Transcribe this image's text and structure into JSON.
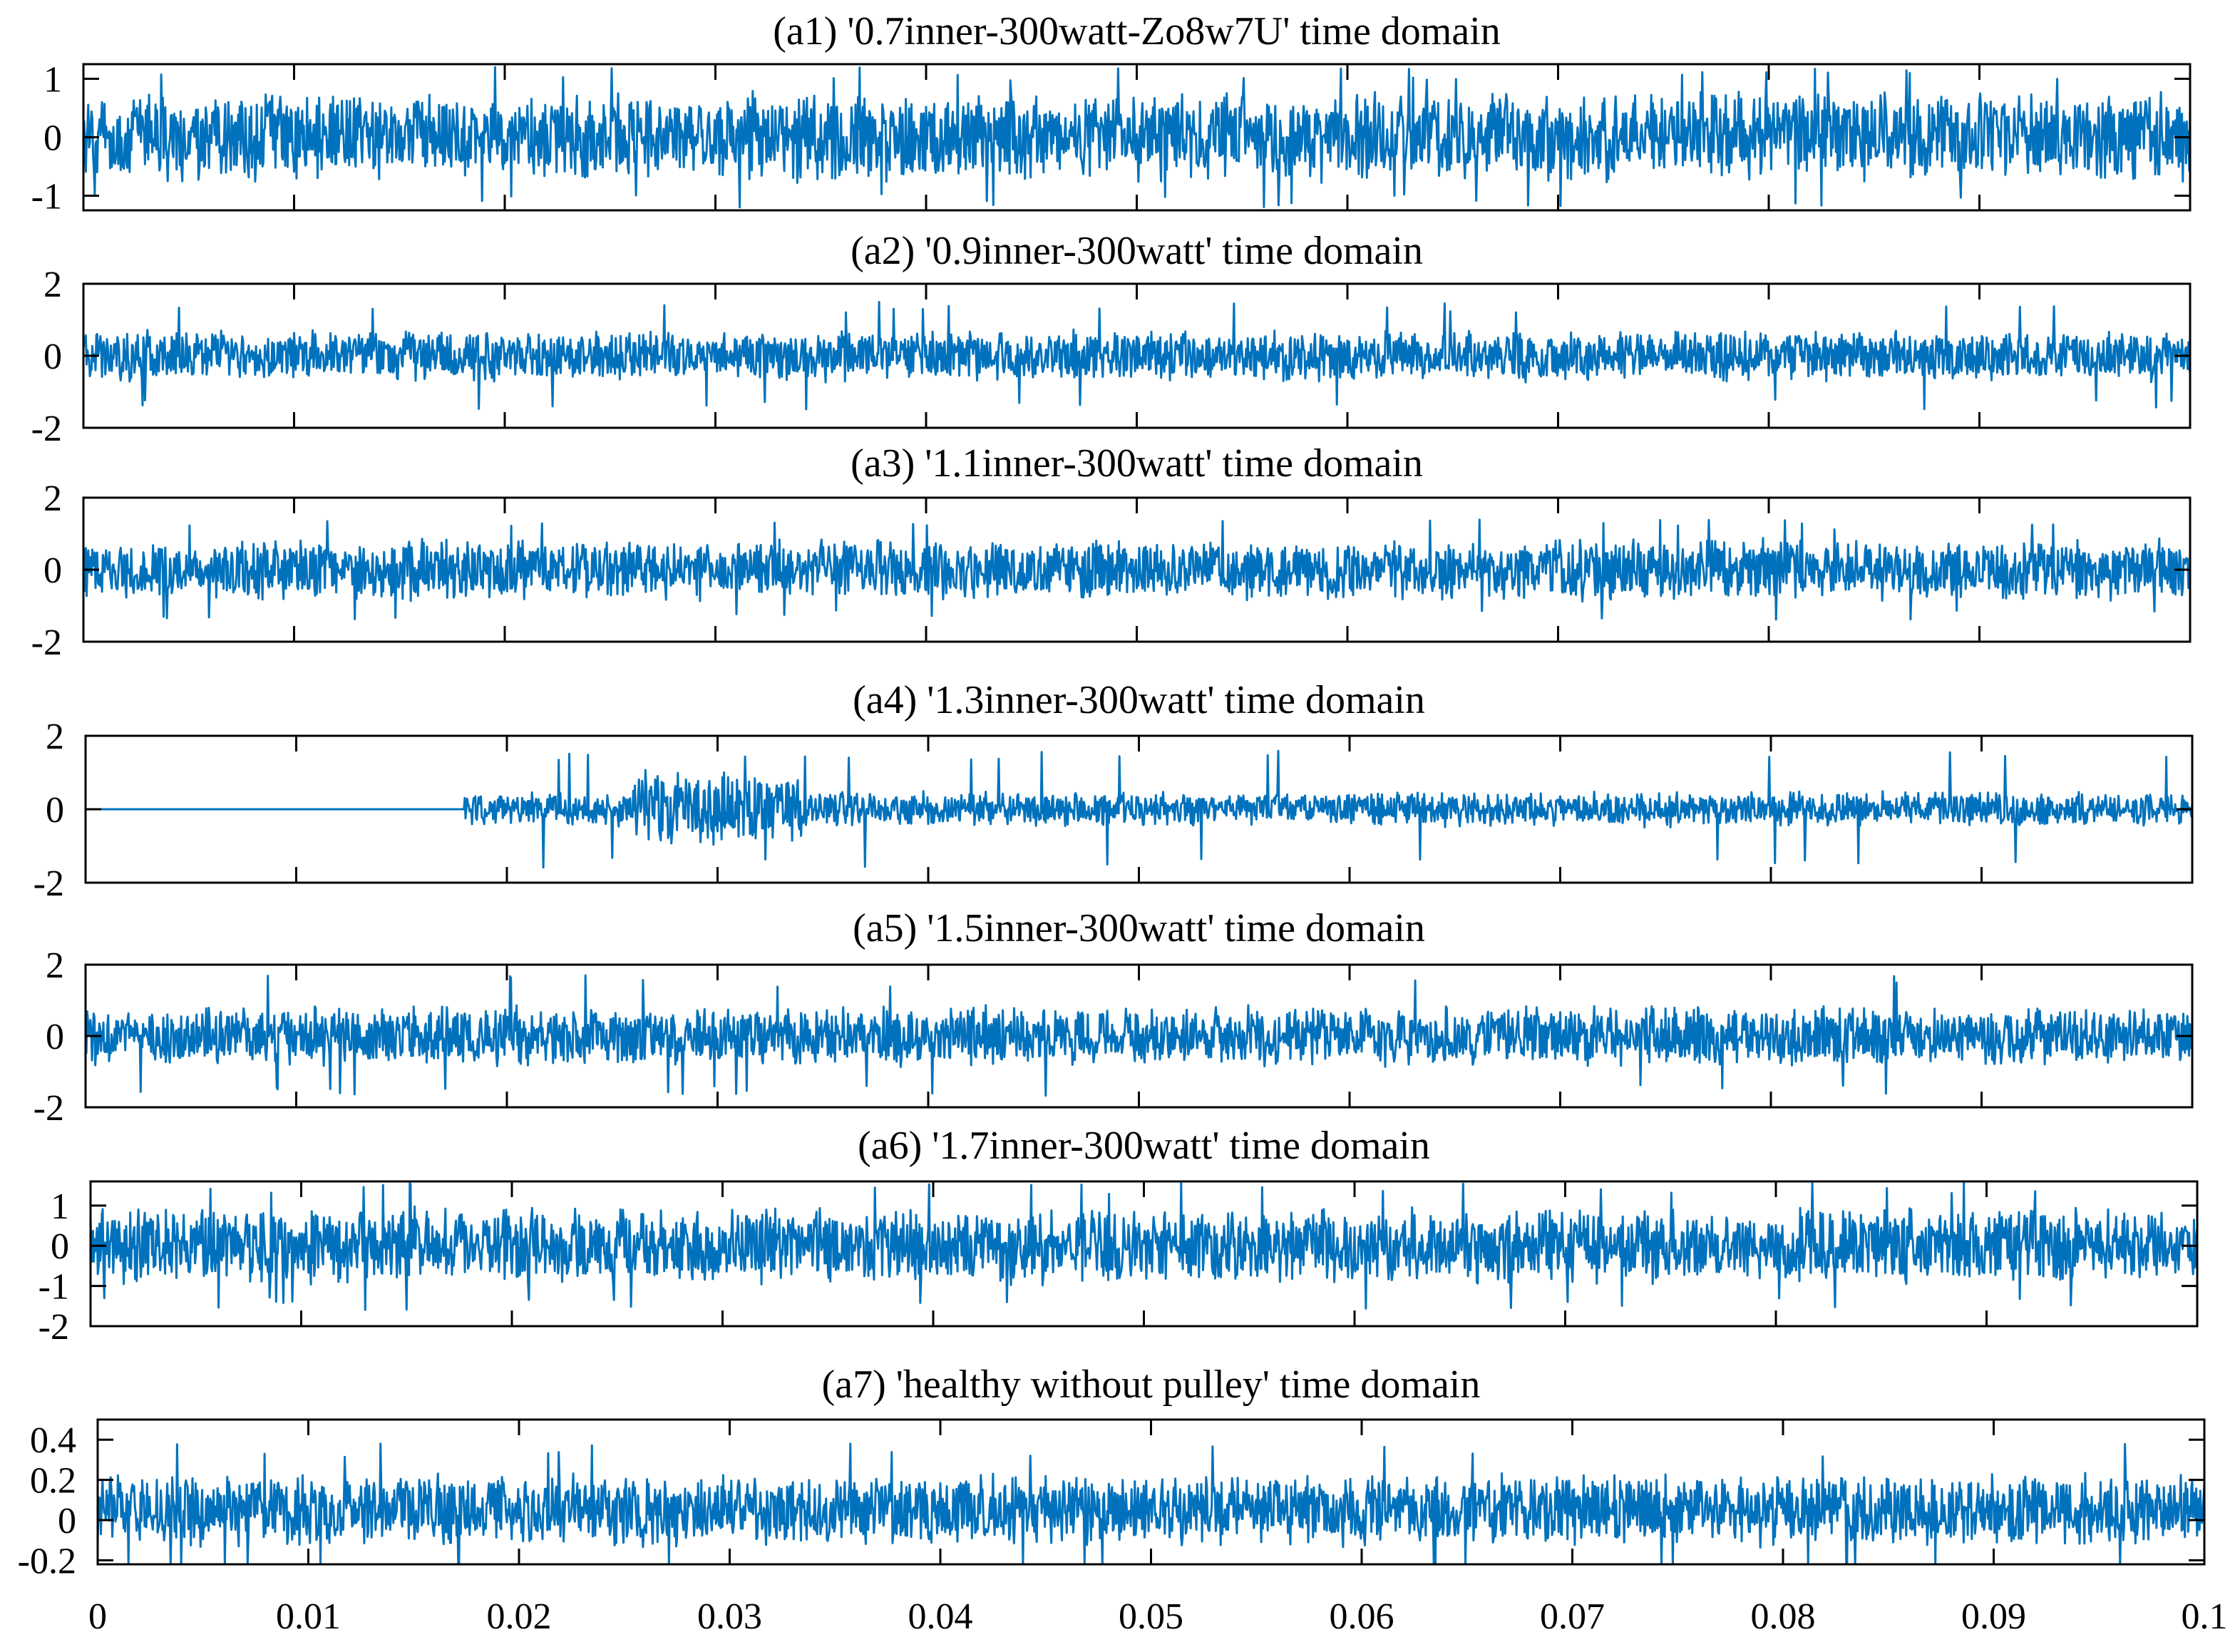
{
  "chart_data": [
    {
      "type": "line",
      "title": "(a1) '0.7inner-300watt-Zo8w7U' time domain",
      "ylim": [
        -1.25,
        1.25
      ],
      "yticks": [
        -1,
        0,
        1
      ],
      "xlim": [
        0,
        0.1
      ],
      "amplitude": 0.8,
      "spike": 1.2,
      "onset": 0,
      "series": [
        {
          "values_description": null
        }
      ]
    },
    {
      "type": "line",
      "title": "(a2) '0.9inner-300watt' time domain",
      "ylim": [
        -2,
        2
      ],
      "yticks": [
        -2,
        0,
        2
      ],
      "xlim": [
        0,
        0.1
      ],
      "amplitude": 0.75,
      "spike": 1.5,
      "onset": 0
    },
    {
      "type": "line",
      "title": "(a3) '1.1inner-300watt' time domain",
      "ylim": [
        -2,
        2
      ],
      "yticks": [
        -2,
        0,
        2
      ],
      "xlim": [
        0,
        0.1
      ],
      "amplitude": 0.9,
      "spike": 1.4,
      "onset": 0
    },
    {
      "type": "line",
      "title": "(a4) '1.3inner-300watt' time domain",
      "ylim": [
        -2,
        2
      ],
      "yticks": [
        -2,
        0,
        2
      ],
      "xlim": [
        0,
        0.1
      ],
      "amplitude": 0.5,
      "spike": 1.6,
      "onset": 0.018
    },
    {
      "type": "line",
      "title": "(a5) '1.5inner-300watt' time domain",
      "ylim": [
        -2,
        2
      ],
      "yticks": [
        -2,
        0,
        2
      ],
      "xlim": [
        0,
        0.1
      ],
      "amplitude": 0.9,
      "spike": 1.7,
      "onset": 0
    },
    {
      "type": "line",
      "title": "(a6) '1.7inner-300watt' time domain",
      "ylim": [
        -2,
        1.6
      ],
      "yticks": [
        -2,
        -1,
        0,
        1
      ],
      "xlim": [
        0,
        0.1
      ],
      "amplitude": 1.0,
      "spike": 1.6,
      "onset": 0
    },
    {
      "type": "line",
      "title": "(a7) 'healthy without pulley' time domain",
      "ylim": [
        -0.22,
        0.5
      ],
      "yticks": [
        -0.2,
        0,
        0.2,
        0.4
      ],
      "xlim": [
        0,
        0.1
      ],
      "amplitude": 0.19,
      "spike": 0.33,
      "onset": 0,
      "offset": 0.05
    }
  ],
  "x_axis": {
    "tick_values": [
      0,
      0.01,
      0.02,
      0.03,
      0.04,
      0.05,
      0.06,
      0.07,
      0.08,
      0.09,
      0.1
    ],
    "tick_labels": [
      "0",
      "0.01",
      "0.02",
      "0.03",
      "0.04",
      "0.05",
      "0.06",
      "0.07",
      "0.08",
      "0.09",
      "0.1"
    ]
  },
  "y_tick_labels": [
    [
      "-1",
      "0",
      "1"
    ],
    [
      "-2",
      "0",
      "2"
    ],
    [
      "-2",
      "0",
      "2"
    ],
    [
      "-2",
      "0",
      "2"
    ],
    [
      "-2",
      "0",
      "2"
    ],
    [
      "-2",
      "-1",
      "0",
      "1"
    ],
    [
      "-0.2",
      "0",
      "0.2",
      "0.4"
    ]
  ],
  "colors": {
    "series": "#0072BD",
    "axes": "#000000"
  }
}
